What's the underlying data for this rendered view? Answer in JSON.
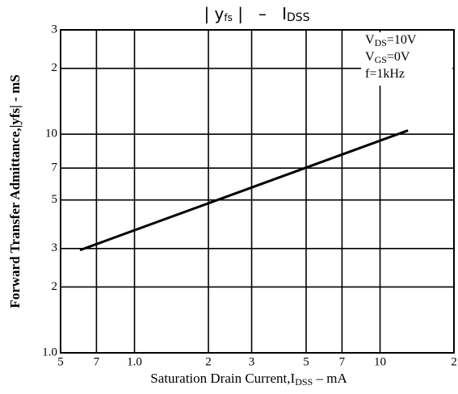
{
  "chart_data": {
    "type": "line",
    "title": [
      "| y",
      "fs",
      " |   –   I",
      "DSS"
    ],
    "x_label": [
      "Saturation Drain Current,I",
      "DSS",
      " – mA"
    ],
    "y_label": "Forward Transfer Admittance,|yfs| - mS",
    "annotations": [
      [
        "V",
        "DS",
        "=10V"
      ],
      [
        "V",
        "GS",
        "=0V"
      ],
      [
        "f=1kHz"
      ]
    ],
    "x": [
      0.6,
      13
    ],
    "series": [
      {
        "color": "#000000",
        "values": [
          2.95,
          10.4
        ]
      }
    ],
    "xlim": [
      0.5,
      20
    ],
    "ylim": [
      1,
      30
    ],
    "xscale": "log",
    "yscale": "log",
    "grid": true,
    "xticks": [
      {
        "value": 0.5,
        "label": "5"
      },
      {
        "value": 0.7,
        "label": "7"
      },
      {
        "value": 1,
        "label": "1.0"
      },
      2,
      3,
      5,
      7,
      10,
      {
        "value": 20,
        "label": "2"
      }
    ],
    "yticks": [
      {
        "value": 1,
        "label": "1.0"
      },
      2,
      3,
      5,
      7,
      10,
      {
        "value": 20,
        "label": "2"
      },
      {
        "value": 30,
        "label": "3"
      }
    ]
  }
}
